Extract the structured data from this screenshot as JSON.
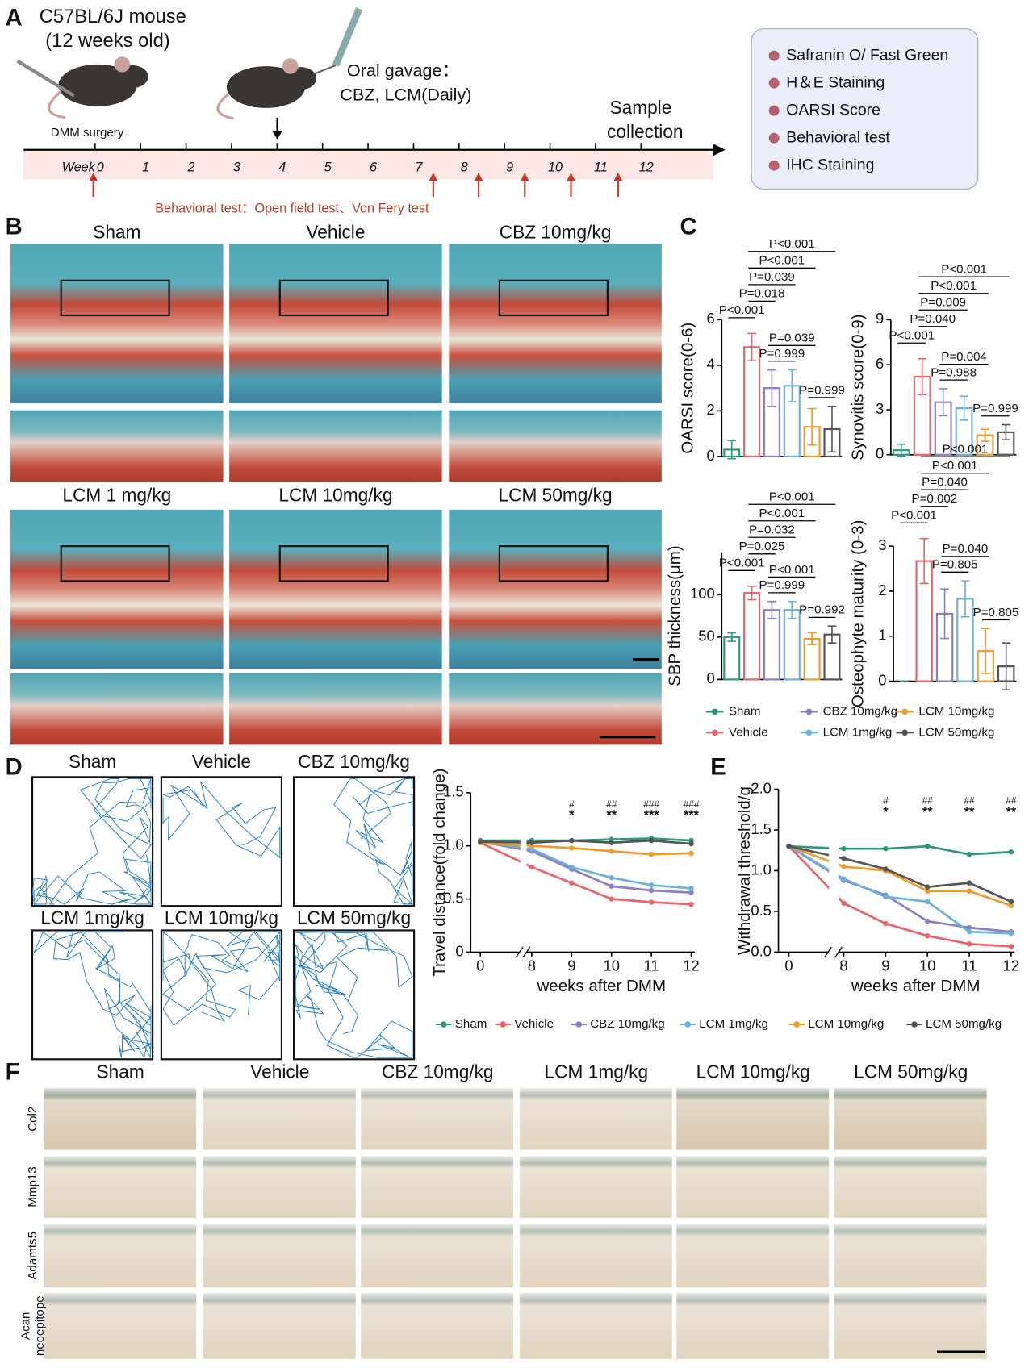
{
  "panel_a": {
    "label": "A",
    "mouse": [
      "C57BL/6J mouse",
      "(12 weeks old)"
    ],
    "surgery": "DMM surgery",
    "gavage": [
      "Oral gavage：",
      "CBZ, LCM(Daily)"
    ],
    "sample": [
      "Sample",
      "collection"
    ],
    "week_label": "Week",
    "weeks": [
      0,
      1,
      2,
      3,
      4,
      5,
      6,
      7,
      8,
      9,
      10,
      11,
      12
    ],
    "behavioral": "Behavioral test：Open field test、Von Fery test",
    "outcomes": [
      "Safranin O/ Fast Green",
      "H＆E Staining",
      "OARSI Score",
      "Behavioral test",
      "IHC Staining"
    ]
  },
  "panel_b": {
    "label": "B",
    "groups": [
      "Sham",
      "Vehicle",
      "CBZ 10mg/kg",
      "LCM 1 mg/kg",
      "LCM 10mg/kg",
      "LCM 50mg/kg"
    ]
  },
  "panel_c": {
    "label": "C",
    "legend": {
      "names": [
        "Sham",
        "Vehicle",
        "CBZ 10mg/kg",
        "LCM 1mg/kg",
        "LCM 10mg/kg",
        "LCM 50mg/kg"
      ],
      "colors": [
        "#2a9a78",
        "#e8636b",
        "#8a7fc4",
        "#6cb0d8",
        "#ef9a2a",
        "#555555"
      ]
    }
  },
  "panel_d": {
    "label": "D",
    "groups": [
      "Sham",
      "Vehicle",
      "CBZ 10mg/kg",
      "LCM 1mg/kg",
      "LCM 10mg/kg",
      "LCM 50mg/kg"
    ]
  },
  "panel_e": {
    "label": "E"
  },
  "legend_de": {
    "names": [
      "Sham",
      "Vehicle",
      "CBZ 10mg/kg",
      "LCM 1mg/kg",
      "LCM 10mg/kg",
      "LCM 50mg/kg"
    ],
    "colors": [
      "#2a9a78",
      "#e8636b",
      "#8a7fc4",
      "#6cb0d8",
      "#ef9a2a",
      "#555555"
    ]
  },
  "panel_f": {
    "label": "F",
    "groups": [
      "Sham",
      "Vehicle",
      "CBZ 10mg/kg",
      "LCM 1mg/kg",
      "LCM 10mg/kg",
      "LCM 50mg/kg"
    ],
    "rows": [
      [
        "Col2"
      ],
      [
        "Mmp13"
      ],
      [
        "Adamts5"
      ],
      [
        "Acan",
        "neoepitope"
      ]
    ]
  },
  "chart_data": [
    {
      "type": "bar",
      "y_label": "OARSI score(0-6)",
      "ylim": [
        0,
        6
      ],
      "yticks": [
        0,
        2,
        4,
        6
      ],
      "values": [
        0.3,
        4.8,
        3.0,
        3.1,
        1.3,
        1.2
      ],
      "errors": [
        0.4,
        0.6,
        0.8,
        0.7,
        0.8,
        1.0
      ],
      "p_values": [
        "P<0.001",
        "P<0.001",
        "P=0.039",
        "P=0.018",
        "P<0.001",
        "P=0.039",
        "P=0.999",
        "P=0.999"
      ]
    },
    {
      "type": "bar",
      "y_label": "Synovitis score(0-9)",
      "ylim": [
        0,
        9
      ],
      "yticks": [
        0,
        3,
        6,
        9
      ],
      "values": [
        0.3,
        5.2,
        3.5,
        3.1,
        1.3,
        1.5
      ],
      "errors": [
        0.4,
        1.2,
        0.9,
        0.8,
        0.4,
        0.5
      ],
      "p_values": [
        "P<0.001",
        "P<0.001",
        "P=0.009",
        "P=0.040",
        "P<0.001",
        "P=0.004",
        "P=0.988",
        "P=0.999"
      ]
    },
    {
      "type": "bar",
      "y_label": "SBP thickness(μm)",
      "ylim": [
        0,
        150
      ],
      "yticks": [
        0,
        50,
        100
      ],
      "values": [
        50,
        102,
        82,
        82,
        48,
        53
      ],
      "errors": [
        5,
        8,
        10,
        10,
        7,
        10
      ],
      "p_values": [
        "P<0.001",
        "P<0.001",
        "P=0.032",
        "P=0.025",
        "P<0.001",
        "P<0.001",
        "P=0.999",
        "P=0.992"
      ]
    },
    {
      "type": "bar",
      "y_label": "Osteophyte maturity (0-3)",
      "ylim": [
        0,
        3
      ],
      "yticks": [
        0,
        1,
        2,
        3
      ],
      "values": [
        0,
        2.67,
        1.5,
        1.83,
        0.67,
        0.33
      ],
      "errors": [
        0,
        0.5,
        0.55,
        0.4,
        0.5,
        0.52
      ],
      "p_values": [
        "P<0.001",
        "P<0.001",
        "P=0.040",
        "P=0.002",
        "P<0.001",
        "P=0.040",
        "P=0.805",
        "P=0.805"
      ]
    },
    {
      "type": "line",
      "y_label": "Travel distance(fold change)",
      "x_label": "weeks after DMM",
      "x": [
        0,
        8,
        9,
        10,
        11,
        12
      ],
      "xlim": [
        0,
        12
      ],
      "xticks": [
        0,
        8,
        9,
        10,
        11,
        12
      ],
      "ylim": [
        0,
        1.5
      ],
      "yticks": [
        0,
        0.5,
        {
          "value": 1,
          "label": "1.0"
        },
        1.5
      ],
      "series": [
        {
          "values": [
            1.05,
            1.05,
            1.05,
            1.06,
            1.07,
            1.05
          ]
        },
        {
          "values": [
            1.03,
            0.8,
            0.65,
            0.5,
            0.47,
            0.45
          ]
        },
        {
          "values": [
            1.04,
            0.95,
            0.78,
            0.62,
            0.58,
            0.56
          ]
        },
        {
          "values": [
            1.04,
            0.97,
            0.8,
            0.7,
            0.63,
            0.6
          ]
        },
        {
          "values": [
            1.03,
            1.0,
            0.98,
            0.95,
            0.92,
            0.93
          ]
        },
        {
          "values": [
            1.04,
            1.03,
            1.05,
            1.03,
            1.05,
            1.02
          ]
        }
      ],
      "significance": [
        {
          "x": 9,
          "hash": "#",
          "stars": "*"
        },
        {
          "x": 10,
          "hash": "##",
          "stars": "**"
        },
        {
          "x": 11,
          "hash": "###",
          "stars": "***"
        },
        {
          "x": 12,
          "hash": "###",
          "stars": "***"
        }
      ]
    },
    {
      "type": "line",
      "y_label": "Withdrawal threshold/g",
      "x_label": "weeks after DMM",
      "x": [
        0,
        8,
        9,
        10,
        11,
        12
      ],
      "xlim": [
        0,
        12
      ],
      "xticks": [
        0,
        8,
        9,
        10,
        11,
        12
      ],
      "ylim": [
        0,
        2
      ],
      "yticks": [
        {
          "value": 0,
          "label": "0.0"
        },
        0.5,
        {
          "value": 1,
          "label": "1.0"
        },
        1.5,
        {
          "value": 2,
          "label": "2.0"
        }
      ],
      "series": [
        {
          "values": [
            1.3,
            1.27,
            1.27,
            1.3,
            1.2,
            1.23
          ]
        },
        {
          "values": [
            1.3,
            0.6,
            0.35,
            0.2,
            0.1,
            0.07
          ]
        },
        {
          "values": [
            1.3,
            0.88,
            0.7,
            0.38,
            0.3,
            0.25
          ]
        },
        {
          "values": [
            1.3,
            0.9,
            0.68,
            0.62,
            0.25,
            0.23
          ]
        },
        {
          "values": [
            1.3,
            1.05,
            1.0,
            0.75,
            0.75,
            0.57
          ]
        },
        {
          "values": [
            1.3,
            1.15,
            1.02,
            0.8,
            0.85,
            0.62
          ]
        }
      ],
      "significance": [
        {
          "x": 9,
          "hash": "#",
          "stars": "*"
        },
        {
          "x": 10,
          "hash": "##",
          "stars": "**"
        },
        {
          "x": 11,
          "hash": "##",
          "stars": "**"
        },
        {
          "x": 12,
          "hash": "##",
          "stars": "**"
        }
      ]
    }
  ]
}
